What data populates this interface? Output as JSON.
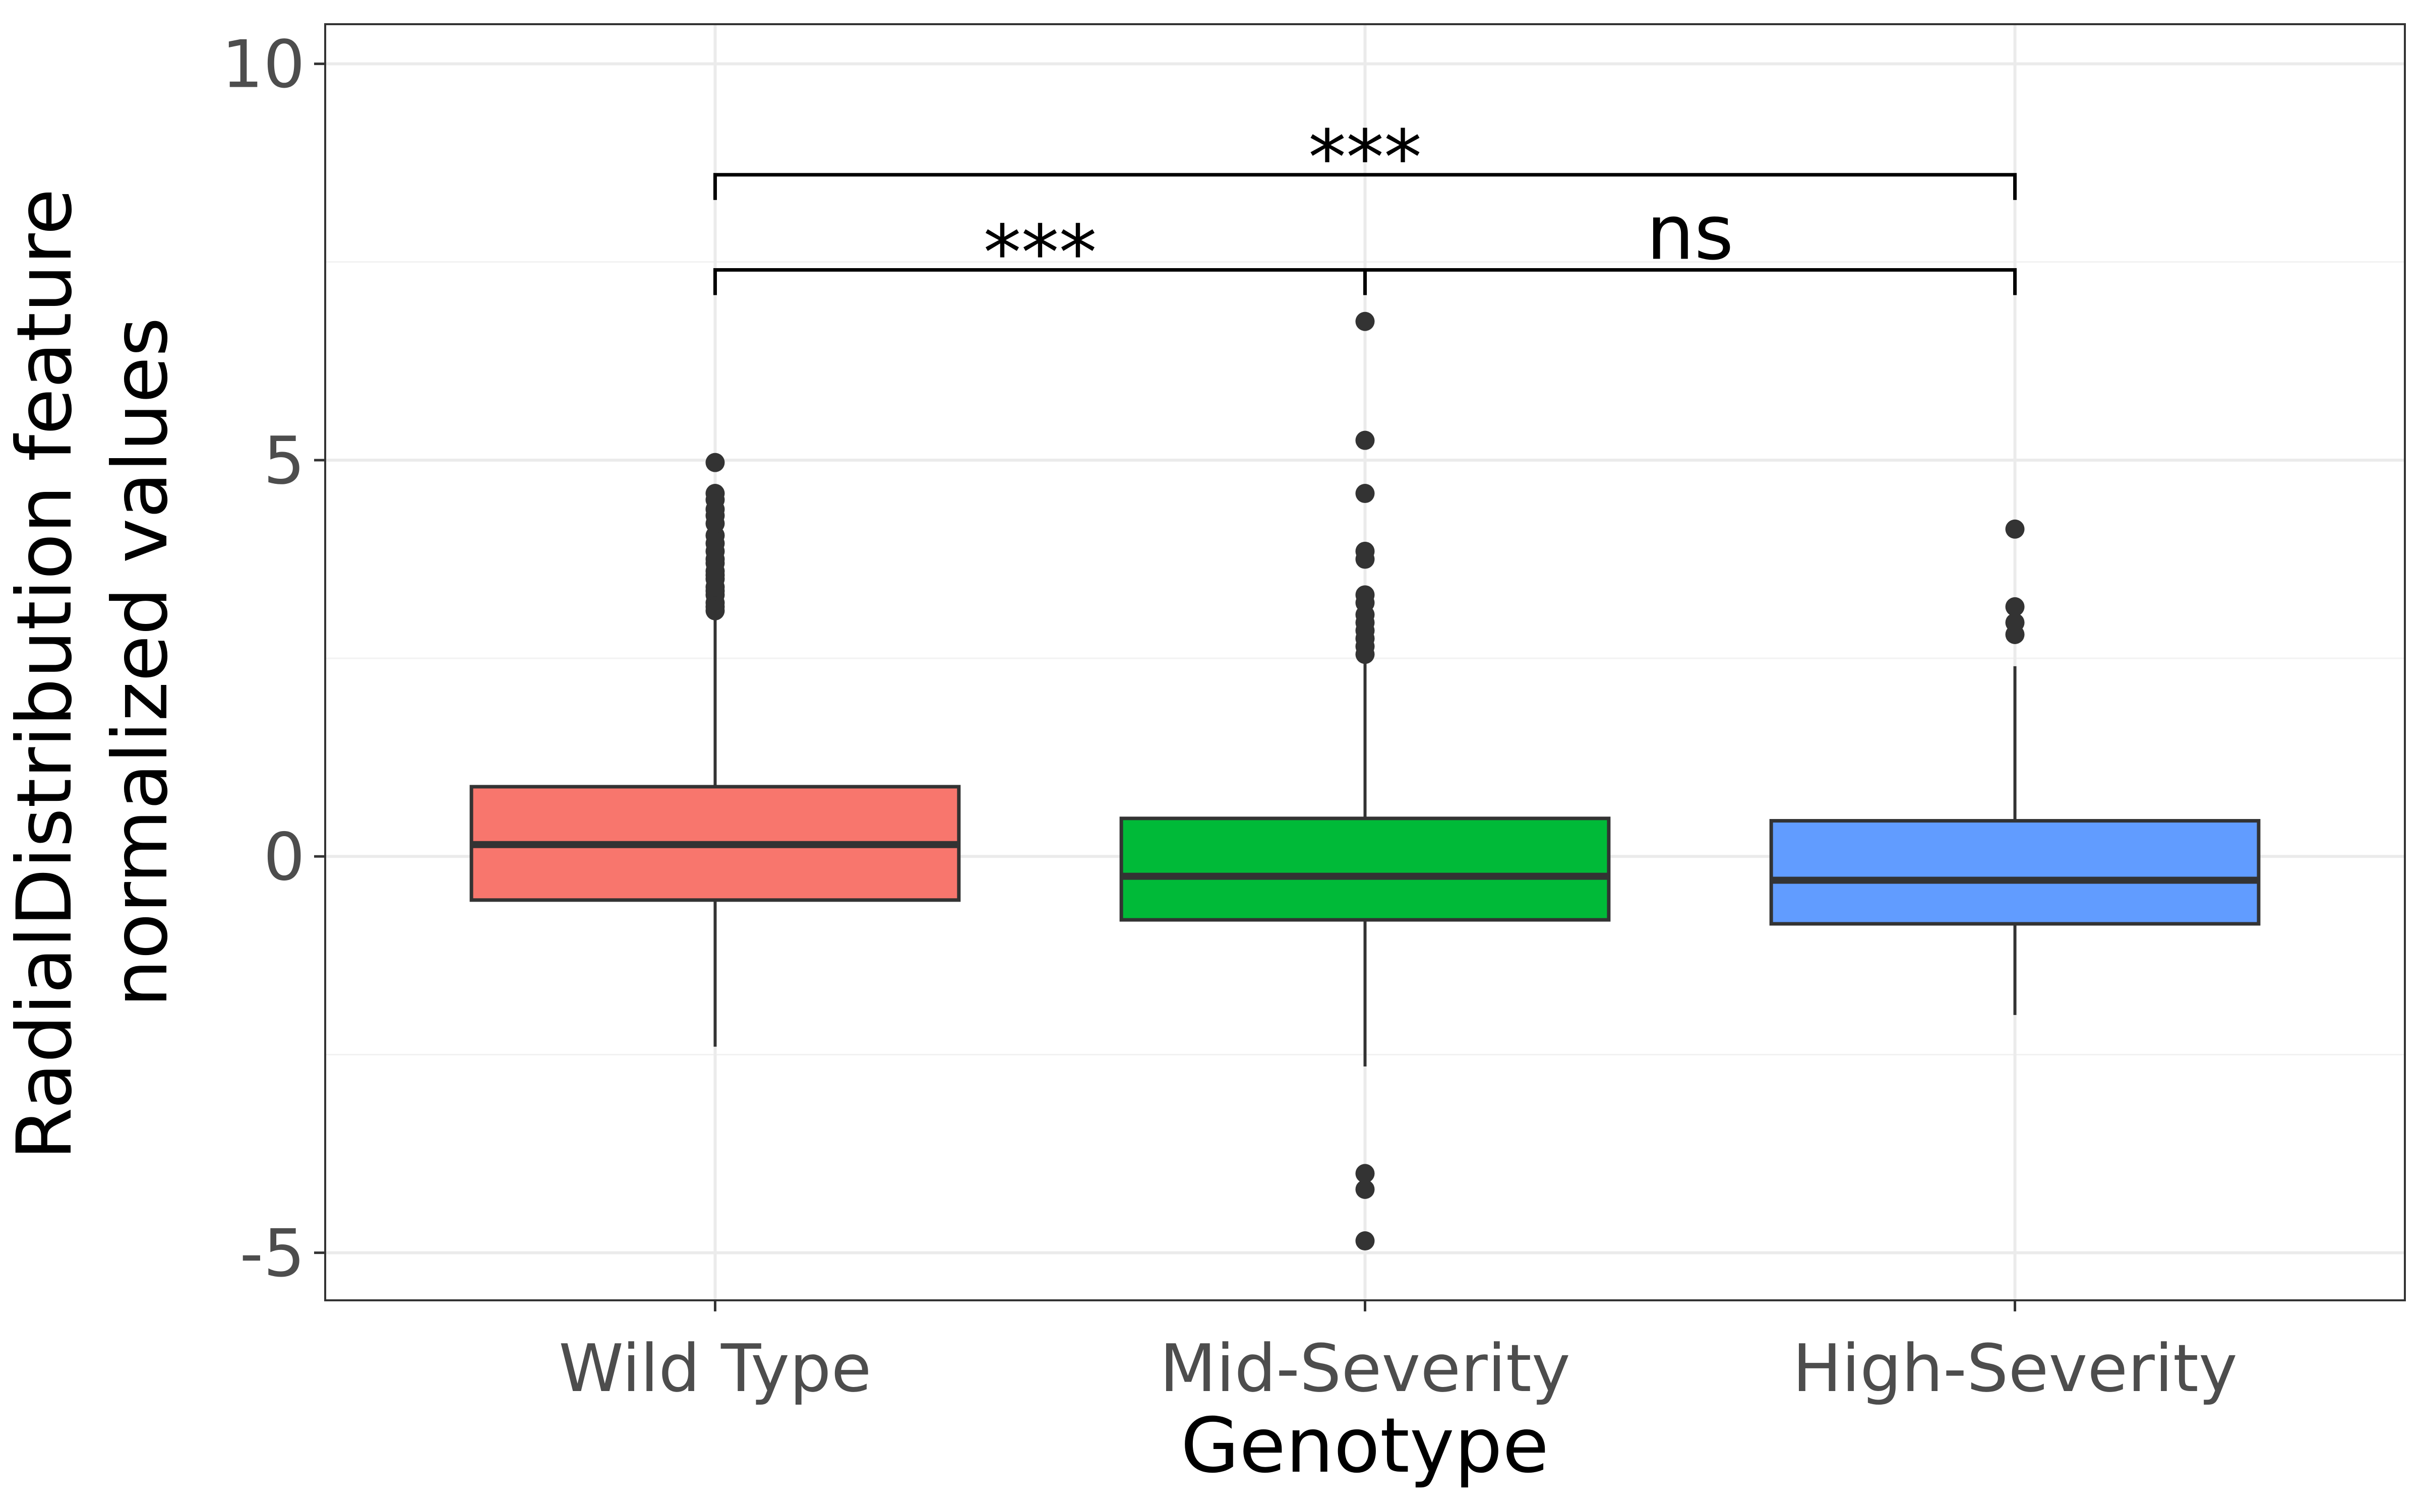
{
  "chart_data": {
    "type": "box",
    "xlabel": "Genotype",
    "ylabel_lines": [
      "RadialDistribution feature",
      "normalized values"
    ],
    "categories": [
      "Wild Type",
      "Mid-Severity",
      "High-Severity"
    ],
    "ylim": [
      -5.6,
      10.5
    ],
    "yticks": [
      -5,
      0,
      5,
      10
    ],
    "ytick_labels": [
      "-5",
      "0",
      "5",
      "10"
    ],
    "grid": true,
    "boxes": [
      {
        "category": "Wild Type",
        "whisker_low": -2.4,
        "q1": -0.55,
        "median": 0.15,
        "q3": 0.88,
        "whisker_high": 3.05,
        "outliers": [
          3.1,
          3.15,
          3.2,
          3.3,
          3.35,
          3.4,
          3.5,
          3.55,
          3.6,
          3.7,
          3.75,
          3.85,
          3.95,
          4.05,
          4.2,
          4.3,
          4.38,
          4.5,
          4.58,
          4.97
        ],
        "fill": "#F8766D"
      },
      {
        "category": "Mid-Severity",
        "whisker_low": -2.65,
        "q1": -0.8,
        "median": -0.25,
        "q3": 0.48,
        "whisker_high": 2.5,
        "outliers": [
          2.55,
          2.65,
          2.75,
          2.85,
          2.95,
          3.05,
          3.2,
          3.3,
          3.75,
          3.85,
          4.58,
          5.25,
          6.75,
          -4.0,
          -4.2,
          -4.85
        ],
        "fill": "#00BA38"
      },
      {
        "category": "High-Severity",
        "whisker_low": -2.0,
        "q1": -0.85,
        "median": -0.3,
        "q3": 0.45,
        "whisker_high": 2.4,
        "outliers": [
          2.8,
          2.95,
          3.15,
          4.13
        ],
        "fill": "#619CFF"
      }
    ],
    "comparisons": [
      {
        "from": "Wild Type",
        "to": "High-Severity",
        "y": 8.6,
        "label": "***"
      },
      {
        "from": "Wild Type",
        "to": "Mid-Severity",
        "y": 7.4,
        "label": "***"
      },
      {
        "from": "Mid-Severity",
        "to": "High-Severity",
        "y": 7.4,
        "label": "ns"
      }
    ]
  }
}
